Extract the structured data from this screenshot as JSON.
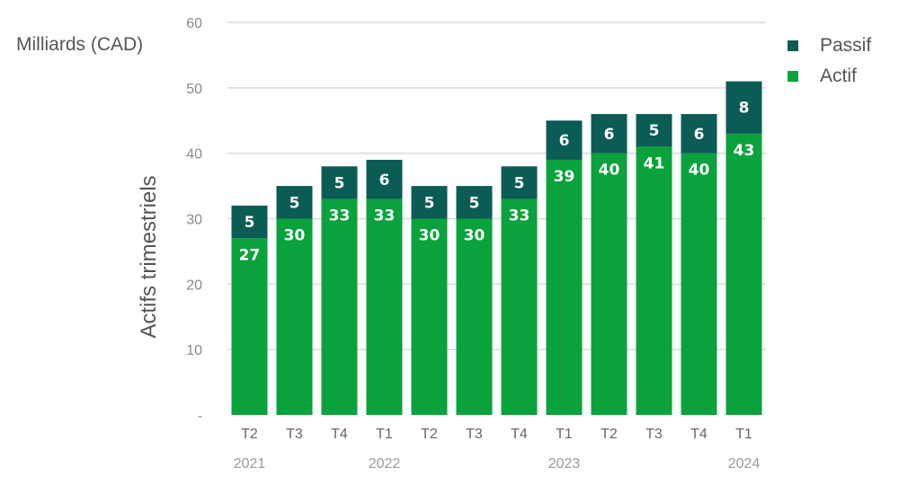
{
  "chart_data": {
    "type": "bar",
    "stacked": true,
    "unit_label": "Milliards (CAD)",
    "ylabel": "Actifs trimestriels",
    "ylim": [
      0,
      60
    ],
    "yticks": [
      "-",
      "10",
      "20",
      "30",
      "40",
      "50",
      "60"
    ],
    "categories": [
      "T2",
      "T3",
      "T4",
      "T1",
      "T2",
      "T3",
      "T4",
      "T1",
      "T2",
      "T3",
      "T4",
      "T1"
    ],
    "years": [
      "2021",
      "",
      "",
      "2022",
      "",
      "",
      "",
      "2023",
      "",
      "",
      "",
      "2024"
    ],
    "series": [
      {
        "name": "Actif",
        "color": "#0aa23c",
        "values": [
          27,
          30,
          33,
          33,
          30,
          30,
          33,
          39,
          40,
          41,
          40,
          43
        ]
      },
      {
        "name": "Passif",
        "color": "#0b5c55",
        "values": [
          5,
          5,
          5,
          6,
          5,
          5,
          5,
          6,
          6,
          5,
          6,
          8
        ]
      }
    ],
    "legend": {
      "position": "top-right",
      "order": [
        "Passif",
        "Actif"
      ]
    },
    "grid": true
  }
}
